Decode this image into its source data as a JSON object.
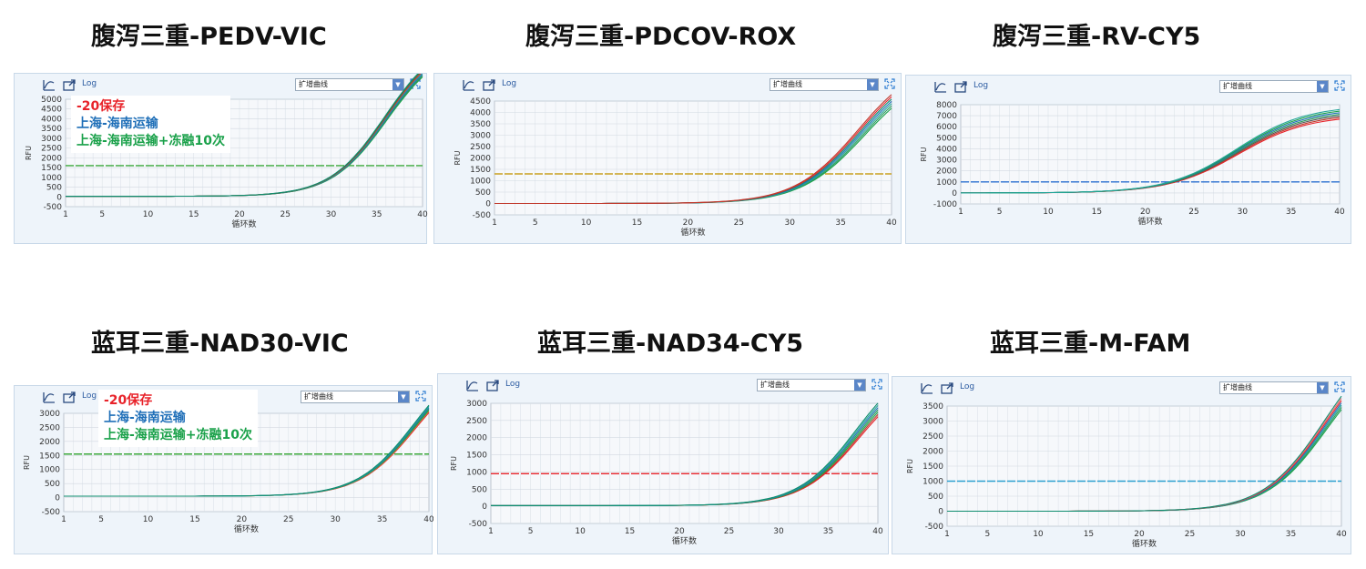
{
  "legend": {
    "items": [
      {
        "label": "-20保存",
        "color": "#e8232a"
      },
      {
        "label": "上海-海南运输",
        "color": "#1f6fb8"
      },
      {
        "label": "上海-海南运输+冻融10次",
        "color": "#1aa14a"
      }
    ]
  },
  "toolbar": {
    "log_label": "Log",
    "select_label": "扩增曲线"
  },
  "chart_data": [
    {
      "type": "line",
      "title": "腹泻三重-PEDV-VIC",
      "xlabel": "循环数",
      "ylabel": "RFU",
      "xlim": [
        1,
        40
      ],
      "ylim": [
        -500,
        5000
      ],
      "xticks": [
        1,
        5,
        10,
        15,
        20,
        25,
        30,
        35,
        40
      ],
      "yticks": [
        -500,
        0,
        500,
        1000,
        1500,
        2000,
        2500,
        3000,
        3500,
        4000,
        4500,
        5000
      ],
      "threshold": {
        "value": 1600,
        "color": "#3aa83a"
      },
      "curves": {
        "base": 30,
        "mid": 36,
        "k": 0.33,
        "plateau": 8000,
        "spread": 400,
        "mid_spread": 0.2
      },
      "series_colors": [
        "#1aa14a",
        "#2b9b5b",
        "#1f6fb8",
        "#26a69a",
        "#e8232a",
        "#3d7a3d",
        "#0e8c6e"
      ],
      "show_legend": true
    },
    {
      "type": "line",
      "title": "腹泻三重-PDCOV-ROX",
      "xlabel": "循环数",
      "ylabel": "RFU",
      "xlim": [
        1,
        40
      ],
      "ylim": [
        -500,
        4500
      ],
      "xticks": [
        1,
        5,
        10,
        15,
        20,
        25,
        30,
        35,
        40
      ],
      "yticks": [
        -500,
        0,
        500,
        1000,
        1500,
        2000,
        2500,
        3000,
        3500,
        4000,
        4500
      ],
      "threshold": {
        "value": 1300,
        "color": "#c8a020"
      },
      "curves": {
        "base": 0,
        "mid": 37,
        "k": 0.32,
        "plateau": 6200,
        "spread": 500,
        "mid_spread": 0.6
      },
      "series_colors": [
        "#1aa14a",
        "#2b9b5b",
        "#26a69a",
        "#1f6fb8",
        "#0e8c6e",
        "#e8232a",
        "#c0392b"
      ],
      "show_legend": false
    },
    {
      "type": "line",
      "title": "腹泻三重-RV-CY5",
      "xlabel": "循环数",
      "ylabel": "RFU",
      "xlim": [
        1,
        40
      ],
      "ylim": [
        -1000,
        8000
      ],
      "xticks": [
        1,
        5,
        10,
        15,
        20,
        25,
        30,
        35,
        40
      ],
      "yticks": [
        -1000,
        0,
        1000,
        2000,
        3000,
        4000,
        5000,
        6000,
        7000,
        8000
      ],
      "threshold": {
        "value": 1000,
        "color": "#2a6fd0"
      },
      "curves": {
        "base": 0,
        "mid": 29.5,
        "k": 0.28,
        "plateau": 7500,
        "spread": 900,
        "mid_spread": 0.2
      },
      "series_colors": [
        "#e8232a",
        "#c0392b",
        "#555555",
        "#2b9b5b",
        "#1f6fb8",
        "#1aa14a",
        "#26a69a"
      ],
      "show_legend": false
    },
    {
      "type": "line",
      "title": "蓝耳三重-NAD30-VIC",
      "xlabel": "循环数",
      "ylabel": "RFU",
      "xlim": [
        1,
        40
      ],
      "ylim": [
        -500,
        3000
      ],
      "xticks": [
        1,
        5,
        10,
        15,
        20,
        25,
        30,
        35,
        40
      ],
      "yticks": [
        -500,
        0,
        500,
        1000,
        1500,
        2000,
        2500,
        3000
      ],
      "threshold": {
        "value": 1550,
        "color": "#3aa83a"
      },
      "curves": {
        "base": 50,
        "mid": 38.5,
        "k": 0.33,
        "plateau": 5000,
        "spread": 300,
        "mid_spread": 0.2
      },
      "series_colors": [
        "#e8232a",
        "#e07040",
        "#1aa14a",
        "#2b9b5b",
        "#1f6fb8",
        "#26a69a",
        "#0e8c6e"
      ],
      "show_legend": true
    },
    {
      "type": "line",
      "title": "蓝耳三重-NAD34-CY5",
      "xlabel": "循环数",
      "ylabel": "RFU",
      "xlim": [
        1,
        40
      ],
      "ylim": [
        -500,
        3000
      ],
      "xticks": [
        1,
        5,
        10,
        15,
        20,
        25,
        30,
        35,
        40
      ],
      "yticks": [
        -500,
        0,
        500,
        1000,
        1500,
        2000,
        2500,
        3000
      ],
      "threshold": {
        "value": 950,
        "color": "#e8232a"
      },
      "curves": {
        "base": 20,
        "mid": 38,
        "k": 0.34,
        "plateau": 4200,
        "spread": 400,
        "mid_spread": 0.4
      },
      "series_colors": [
        "#e8232a",
        "#c0392b",
        "#1aa14a",
        "#2b9b5b",
        "#1f6fb8",
        "#26a69a",
        "#0e8c6e"
      ],
      "show_legend": false
    },
    {
      "type": "line",
      "title": "蓝耳三重-M-FAM",
      "xlabel": "循环数",
      "ylabel": "RFU",
      "xlim": [
        1,
        40
      ],
      "ylim": [
        -500,
        3500
      ],
      "xticks": [
        1,
        5,
        10,
        15,
        20,
        25,
        30,
        35,
        40
      ],
      "yticks": [
        -500,
        0,
        500,
        1000,
        1500,
        2000,
        2500,
        3000,
        3500
      ],
      "threshold": {
        "value": 1000,
        "color": "#2a9fd0"
      },
      "curves": {
        "base": 0,
        "mid": 38.5,
        "k": 0.33,
        "plateau": 5800,
        "spread": 500,
        "mid_spread": 0.3
      },
      "series_colors": [
        "#1aa14a",
        "#2b9b5b",
        "#26a69a",
        "#1f6fb8",
        "#e8232a",
        "#e07070",
        "#0e8c6e"
      ],
      "show_legend": false
    }
  ]
}
